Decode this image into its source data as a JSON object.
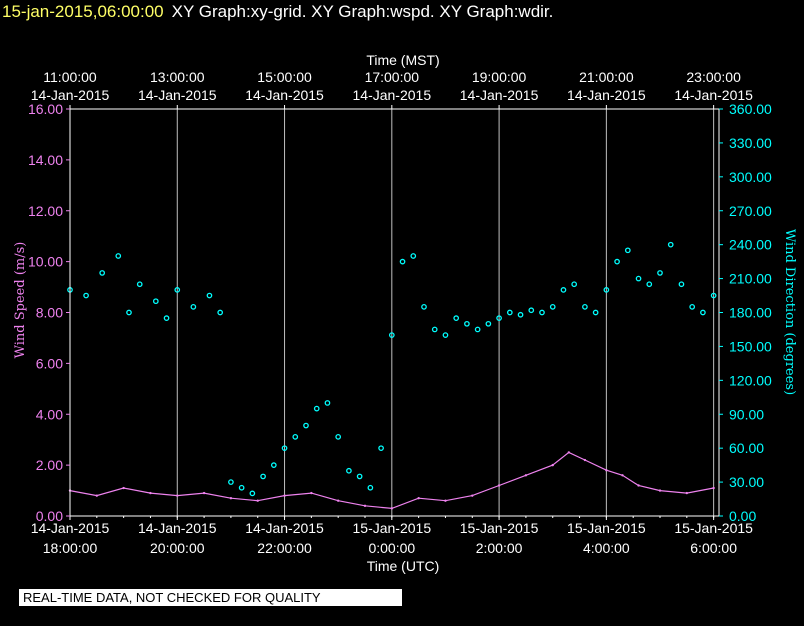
{
  "header": {
    "timestamp": "15-jan-2015,06:00:00",
    "title": "XY Graph:xy-grid.  XY Graph:wspd.  XY Graph:wdir."
  },
  "disclaimer": "REAL-TIME DATA, NOT CHECKED FOR QUALITY",
  "colors": {
    "wspd": "#ee82ee",
    "wdir": "#00ffff",
    "grid": "#c0c0c0",
    "axis": "#ffffff",
    "background": "#000000"
  },
  "chart_data": {
    "type": "scatter",
    "x_top_label": "Time (MST)",
    "x_bottom_label": "Time (UTC)",
    "y_left_label": "Wind Speed (m/s)",
    "y_right_label": "Wind Direction (degrees)",
    "xlim_utc_hours": [
      18,
      30.1
    ],
    "y_left_lim": [
      0,
      16
    ],
    "y_right_lim": [
      0,
      360
    ],
    "y_left_ticks": [
      "0.00",
      "2.00",
      "4.00",
      "6.00",
      "8.00",
      "10.00",
      "12.00",
      "14.00",
      "16.00"
    ],
    "y_right_ticks": [
      "0.00",
      "30.00",
      "60.00",
      "90.00",
      "120.00",
      "150.00",
      "180.00",
      "210.00",
      "240.00",
      "270.00",
      "300.00",
      "330.00",
      "360.00"
    ],
    "top_ticks": [
      {
        "time": "11:00:00",
        "date": "14-Jan-2015"
      },
      {
        "time": "13:00:00",
        "date": "14-Jan-2015"
      },
      {
        "time": "15:00:00",
        "date": "14-Jan-2015"
      },
      {
        "time": "17:00:00",
        "date": "14-Jan-2015"
      },
      {
        "time": "19:00:00",
        "date": "14-Jan-2015"
      },
      {
        "time": "21:00:00",
        "date": "14-Jan-2015"
      },
      {
        "time": "23:00:00",
        "date": "14-Jan-2015"
      }
    ],
    "bottom_ticks": [
      {
        "date": "14-Jan-2015",
        "time": "18:00:00"
      },
      {
        "date": "14-Jan-2015",
        "time": "20:00:00"
      },
      {
        "date": "14-Jan-2015",
        "time": "22:00:00"
      },
      {
        "date": "15-Jan-2015",
        "time": "0:00:00"
      },
      {
        "date": "15-Jan-2015",
        "time": "2:00:00"
      },
      {
        "date": "15-Jan-2015",
        "time": "4:00:00"
      },
      {
        "date": "15-Jan-2015",
        "time": "6:00:00"
      }
    ],
    "grid": true,
    "series": [
      {
        "key": "wdir",
        "axis": "right",
        "style": "circles",
        "points": [
          [
            18.0,
            200
          ],
          [
            18.3,
            195
          ],
          [
            18.6,
            215
          ],
          [
            18.9,
            230
          ],
          [
            19.1,
            180
          ],
          [
            19.3,
            205
          ],
          [
            19.6,
            190
          ],
          [
            19.8,
            175
          ],
          [
            20.0,
            200
          ],
          [
            20.3,
            185
          ],
          [
            20.6,
            195
          ],
          [
            20.8,
            180
          ],
          [
            21.0,
            30
          ],
          [
            21.2,
            25
          ],
          [
            21.4,
            20
          ],
          [
            21.6,
            35
          ],
          [
            21.8,
            45
          ],
          [
            22.0,
            60
          ],
          [
            22.2,
            70
          ],
          [
            22.4,
            80
          ],
          [
            22.6,
            95
          ],
          [
            22.8,
            100
          ],
          [
            23.0,
            70
          ],
          [
            23.2,
            40
          ],
          [
            23.4,
            35
          ],
          [
            23.6,
            25
          ],
          [
            23.8,
            60
          ],
          [
            24.0,
            160
          ],
          [
            24.2,
            225
          ],
          [
            24.4,
            230
          ],
          [
            24.6,
            185
          ],
          [
            24.8,
            165
          ],
          [
            25.0,
            160
          ],
          [
            25.2,
            175
          ],
          [
            25.4,
            170
          ],
          [
            25.6,
            165
          ],
          [
            25.8,
            170
          ],
          [
            26.0,
            175
          ],
          [
            26.2,
            180
          ],
          [
            26.4,
            178
          ],
          [
            26.6,
            182
          ],
          [
            26.8,
            180
          ],
          [
            27.0,
            185
          ],
          [
            27.2,
            200
          ],
          [
            27.4,
            205
          ],
          [
            27.6,
            185
          ],
          [
            27.8,
            180
          ],
          [
            28.0,
            200
          ],
          [
            28.2,
            225
          ],
          [
            28.4,
            235
          ],
          [
            28.6,
            210
          ],
          [
            28.8,
            205
          ],
          [
            29.0,
            215
          ],
          [
            29.2,
            240
          ],
          [
            29.4,
            205
          ],
          [
            29.6,
            185
          ],
          [
            29.8,
            180
          ],
          [
            30.0,
            195
          ]
        ]
      },
      {
        "key": "wspd",
        "axis": "left",
        "style": "line",
        "points": [
          [
            18.0,
            1.0
          ],
          [
            18.5,
            0.8
          ],
          [
            19.0,
            1.1
          ],
          [
            19.5,
            0.9
          ],
          [
            20.0,
            0.8
          ],
          [
            20.5,
            0.9
          ],
          [
            21.0,
            0.7
          ],
          [
            21.5,
            0.6
          ],
          [
            22.0,
            0.8
          ],
          [
            22.5,
            0.9
          ],
          [
            23.0,
            0.6
          ],
          [
            23.5,
            0.4
          ],
          [
            24.0,
            0.3
          ],
          [
            24.5,
            0.7
          ],
          [
            25.0,
            0.6
          ],
          [
            25.5,
            0.8
          ],
          [
            26.0,
            1.2
          ],
          [
            26.5,
            1.6
          ],
          [
            27.0,
            2.0
          ],
          [
            27.3,
            2.5
          ],
          [
            27.6,
            2.2
          ],
          [
            28.0,
            1.8
          ],
          [
            28.3,
            1.6
          ],
          [
            28.6,
            1.2
          ],
          [
            29.0,
            1.0
          ],
          [
            29.5,
            0.9
          ],
          [
            30.0,
            1.1
          ]
        ]
      }
    ]
  }
}
